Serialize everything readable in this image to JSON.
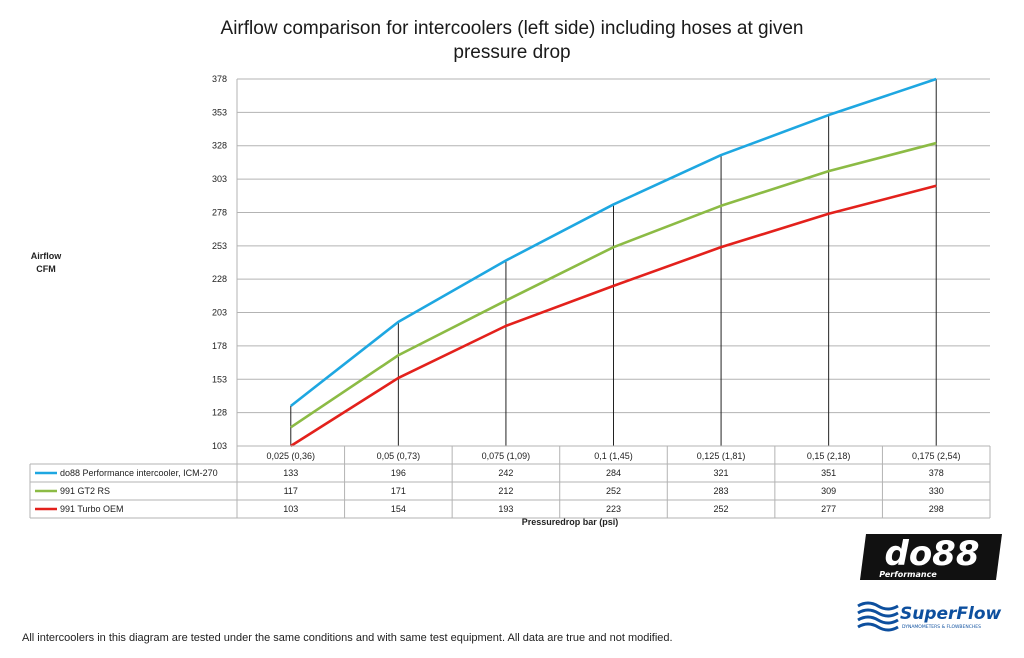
{
  "chart_data": {
    "type": "line",
    "title_line1": "Airflow comparison for intercoolers (left side) including hoses at given",
    "title_line2": "pressure drop",
    "ylabel_line1": "Airflow",
    "ylabel_line2": "CFM",
    "xlabel": "Pressuredrop bar (psi)",
    "categories": [
      "0,025 (0,36)",
      "0,05 (0,73)",
      "0,075 (1,09)",
      "0,1 (1,45)",
      "0,125 (1,81)",
      "0,15 (2,18)",
      "0,175 (2,54)"
    ],
    "yticks": [
      103,
      128,
      153,
      178,
      203,
      228,
      253,
      278,
      303,
      328,
      353,
      378
    ],
    "ylim": [
      103,
      378
    ],
    "grid": true,
    "series": [
      {
        "name": "do88 Performance intercooler, ICM-270",
        "color": "#1ea7e1",
        "values": [
          133,
          196,
          242,
          284,
          321,
          351,
          378
        ]
      },
      {
        "name": "991 GT2 RS",
        "color": "#8cbb45",
        "values": [
          117,
          171,
          212,
          252,
          283,
          309,
          330
        ]
      },
      {
        "name": "991 Turbo OEM",
        "color": "#e3211c",
        "values": [
          103,
          154,
          193,
          223,
          252,
          277,
          298
        ]
      }
    ]
  },
  "footer": "All intercoolers in this diagram are tested under the same conditions and with same test equipment. All data are true and not modified.",
  "logos": {
    "do88": "do88",
    "do88_sub": "Performance",
    "superflow": "SuperFlow",
    "superflow_sub": "DYNAMOMETERS & FLOWBENCHES"
  }
}
